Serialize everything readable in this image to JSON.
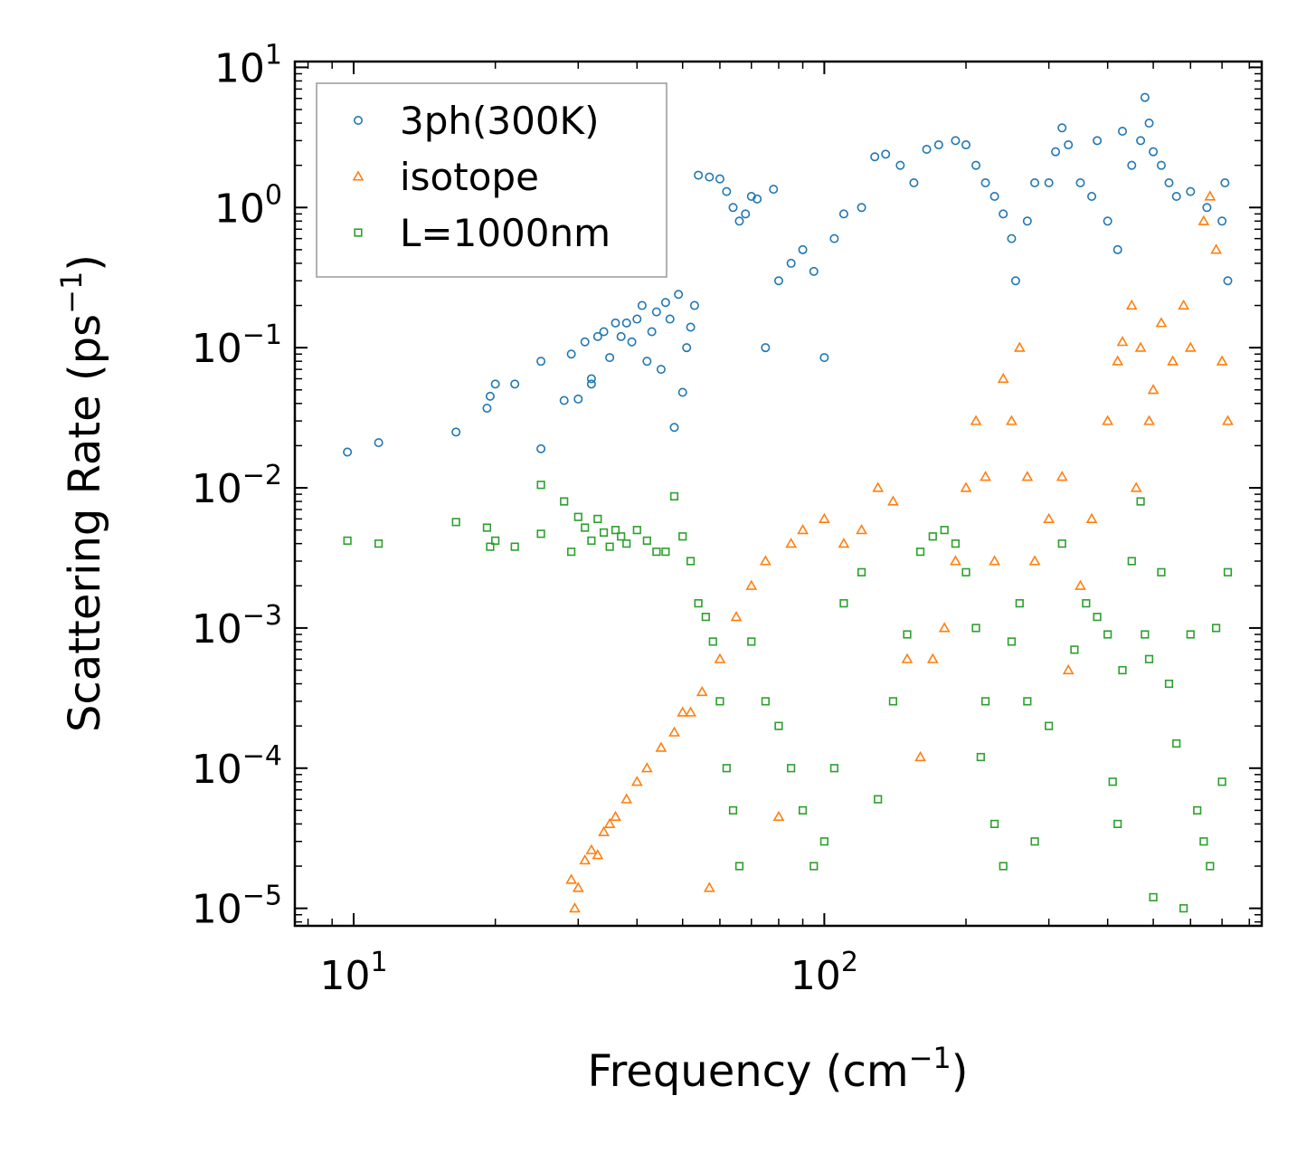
{
  "chart_data": {
    "type": "scatter",
    "title": "",
    "xlabel": "Frequency (cm",
    "xlabel_sup": "−1",
    "xlabel_close": ")",
    "ylabel": "Scattering Rate (ps",
    "ylabel_sup": "−1",
    "ylabel_close": ")",
    "xscale": "log",
    "yscale": "log",
    "xlim": [
      7.5,
      850
    ],
    "ylim": [
      7.5e-06,
      11
    ],
    "x_ticks": [
      {
        "value": 10,
        "base": "10",
        "exp": "1"
      },
      {
        "value": 100,
        "base": "10",
        "exp": "2"
      }
    ],
    "y_ticks": [
      {
        "value": 10,
        "base": "10",
        "exp": "1"
      },
      {
        "value": 1,
        "base": "10",
        "exp": "0"
      },
      {
        "value": 0.1,
        "base": "10",
        "exp": "−1"
      },
      {
        "value": 0.01,
        "base": "10",
        "exp": "−2"
      },
      {
        "value": 0.001,
        "base": "10",
        "exp": "−3"
      },
      {
        "value": 0.0001,
        "base": "10",
        "exp": "−4"
      },
      {
        "value": 1e-05,
        "base": "10",
        "exp": "−5"
      }
    ],
    "legend_position": "top-left",
    "series": [
      {
        "name": "3ph(300K)",
        "color": "#1f77b4",
        "marker": "circle",
        "points": [
          [
            9.7,
            0.018
          ],
          [
            11.3,
            0.021
          ],
          [
            16.5,
            0.025
          ],
          [
            19.2,
            0.037
          ],
          [
            19.5,
            0.045
          ],
          [
            20,
            0.055
          ],
          [
            22,
            0.055
          ],
          [
            25,
            0.08
          ],
          [
            25,
            0.019
          ],
          [
            28,
            0.042
          ],
          [
            29,
            0.09
          ],
          [
            30,
            0.043
          ],
          [
            31,
            0.11
          ],
          [
            32,
            0.06
          ],
          [
            32,
            0.055
          ],
          [
            33,
            0.12
          ],
          [
            34,
            0.13
          ],
          [
            35,
            0.085
          ],
          [
            36,
            0.15
          ],
          [
            37,
            0.12
          ],
          [
            38,
            0.15
          ],
          [
            39,
            0.11
          ],
          [
            40,
            0.16
          ],
          [
            41,
            0.2
          ],
          [
            42,
            0.08
          ],
          [
            43,
            0.13
          ],
          [
            44,
            0.18
          ],
          [
            45,
            0.07
          ],
          [
            46,
            0.21
          ],
          [
            47,
            0.16
          ],
          [
            48,
            0.027
          ],
          [
            49,
            0.24
          ],
          [
            50,
            0.048
          ],
          [
            51,
            0.1
          ],
          [
            52,
            0.14
          ],
          [
            53,
            0.2
          ],
          [
            54,
            1.7
          ],
          [
            57,
            1.65
          ],
          [
            60,
            1.6
          ],
          [
            62,
            1.3
          ],
          [
            64,
            1.0
          ],
          [
            66,
            0.8
          ],
          [
            68,
            0.9
          ],
          [
            70,
            1.2
          ],
          [
            72,
            1.15
          ],
          [
            75,
            0.1
          ],
          [
            78,
            1.35
          ],
          [
            80,
            0.3
          ],
          [
            85,
            0.4
          ],
          [
            90,
            0.5
          ],
          [
            95,
            0.35
          ],
          [
            100,
            0.085
          ],
          [
            105,
            0.6
          ],
          [
            110,
            0.9
          ],
          [
            120,
            1.0
          ],
          [
            128,
            2.3
          ],
          [
            135,
            2.4
          ],
          [
            145,
            2.0
          ],
          [
            155,
            1.5
          ],
          [
            165,
            2.6
          ],
          [
            175,
            2.8
          ],
          [
            190,
            3.0
          ],
          [
            200,
            2.8
          ],
          [
            210,
            2.0
          ],
          [
            220,
            1.5
          ],
          [
            230,
            1.2
          ],
          [
            240,
            0.9
          ],
          [
            250,
            0.6
          ],
          [
            255,
            0.3
          ],
          [
            270,
            0.8
          ],
          [
            280,
            1.5
          ],
          [
            300,
            1.5
          ],
          [
            310,
            2.5
          ],
          [
            320,
            3.7
          ],
          [
            330,
            2.8
          ],
          [
            350,
            1.5
          ],
          [
            370,
            1.2
          ],
          [
            380,
            3.0
          ],
          [
            400,
            0.8
          ],
          [
            420,
            0.5
          ],
          [
            430,
            3.5
          ],
          [
            450,
            2.0
          ],
          [
            470,
            3.0
          ],
          [
            480,
            6.1
          ],
          [
            490,
            4.0
          ],
          [
            500,
            2.5
          ],
          [
            520,
            2.0
          ],
          [
            540,
            1.5
          ],
          [
            560,
            1.2
          ],
          [
            600,
            1.3
          ],
          [
            650,
            1.0
          ],
          [
            700,
            0.8
          ],
          [
            710,
            1.5
          ],
          [
            720,
            0.3
          ]
        ]
      },
      {
        "name": "isotope",
        "color": "#ff7f0e",
        "marker": "triangle",
        "points": [
          [
            29,
            1.6e-05
          ],
          [
            29.5,
            1e-05
          ],
          [
            30,
            1.4e-05
          ],
          [
            31,
            2.2e-05
          ],
          [
            32,
            2.6e-05
          ],
          [
            33,
            2.4e-05
          ],
          [
            34,
            3.5e-05
          ],
          [
            35,
            4e-05
          ],
          [
            36,
            4.5e-05
          ],
          [
            38,
            6e-05
          ],
          [
            40,
            8e-05
          ],
          [
            42,
            0.0001
          ],
          [
            45,
            0.00014
          ],
          [
            48,
            0.00018
          ],
          [
            50,
            0.00025
          ],
          [
            52,
            0.00025
          ],
          [
            55,
            0.00035
          ],
          [
            57,
            1.4e-05
          ],
          [
            60,
            0.0006
          ],
          [
            65,
            0.0012
          ],
          [
            70,
            0.002
          ],
          [
            75,
            0.003
          ],
          [
            80,
            4.5e-05
          ],
          [
            85,
            0.004
          ],
          [
            90,
            0.005
          ],
          [
            100,
            0.006
          ],
          [
            110,
            0.004
          ],
          [
            120,
            0.005
          ],
          [
            130,
            0.01
          ],
          [
            140,
            0.008
          ],
          [
            150,
            0.0006
          ],
          [
            160,
            0.00012
          ],
          [
            170,
            0.0006
          ],
          [
            180,
            0.001
          ],
          [
            190,
            0.003
          ],
          [
            200,
            0.01
          ],
          [
            210,
            0.03
          ],
          [
            220,
            0.012
          ],
          [
            230,
            0.003
          ],
          [
            240,
            0.06
          ],
          [
            250,
            0.03
          ],
          [
            260,
            0.1
          ],
          [
            270,
            0.012
          ],
          [
            280,
            0.003
          ],
          [
            300,
            0.006
          ],
          [
            320,
            0.012
          ],
          [
            330,
            0.0005
          ],
          [
            350,
            0.002
          ],
          [
            370,
            0.006
          ],
          [
            400,
            0.03
          ],
          [
            420,
            0.08
          ],
          [
            430,
            0.11
          ],
          [
            450,
            0.2
          ],
          [
            460,
            0.01
          ],
          [
            470,
            0.1
          ],
          [
            490,
            0.03
          ],
          [
            500,
            0.05
          ],
          [
            520,
            0.15
          ],
          [
            550,
            0.08
          ],
          [
            580,
            0.2
          ],
          [
            600,
            0.1
          ],
          [
            640,
            0.8
          ],
          [
            660,
            1.2
          ],
          [
            680,
            0.5
          ],
          [
            700,
            0.08
          ],
          [
            720,
            0.03
          ]
        ]
      },
      {
        "name": "L=1000nm",
        "color": "#2ca02c",
        "marker": "square",
        "points": [
          [
            9.7,
            0.0042
          ],
          [
            11.3,
            0.004
          ],
          [
            16.5,
            0.0057
          ],
          [
            19.2,
            0.0052
          ],
          [
            19.5,
            0.0038
          ],
          [
            20,
            0.0042
          ],
          [
            22,
            0.0038
          ],
          [
            25,
            0.0047
          ],
          [
            25,
            0.0105
          ],
          [
            28,
            0.008
          ],
          [
            29,
            0.0035
          ],
          [
            30,
            0.0062
          ],
          [
            31,
            0.0052
          ],
          [
            32,
            0.0042
          ],
          [
            33,
            0.006
          ],
          [
            34,
            0.0048
          ],
          [
            35,
            0.0038
          ],
          [
            36,
            0.005
          ],
          [
            37,
            0.0045
          ],
          [
            38,
            0.004
          ],
          [
            40,
            0.005
          ],
          [
            42,
            0.0042
          ],
          [
            44,
            0.0035
          ],
          [
            46,
            0.0035
          ],
          [
            48,
            0.0087
          ],
          [
            50,
            0.0045
          ],
          [
            52,
            0.003
          ],
          [
            54,
            0.0015
          ],
          [
            56,
            0.0012
          ],
          [
            58,
            0.0008
          ],
          [
            60,
            0.0003
          ],
          [
            62,
            0.0001
          ],
          [
            64,
            5e-05
          ],
          [
            66,
            2e-05
          ],
          [
            70,
            0.0008
          ],
          [
            75,
            0.0003
          ],
          [
            80,
            0.0002
          ],
          [
            85,
            0.0001
          ],
          [
            90,
            5e-05
          ],
          [
            95,
            2e-05
          ],
          [
            100,
            3e-05
          ],
          [
            105,
            0.0001
          ],
          [
            110,
            0.0015
          ],
          [
            120,
            0.0025
          ],
          [
            130,
            6e-05
          ],
          [
            140,
            0.0003
          ],
          [
            150,
            0.0009
          ],
          [
            160,
            0.0035
          ],
          [
            170,
            0.0045
          ],
          [
            180,
            0.005
          ],
          [
            190,
            0.004
          ],
          [
            200,
            0.0025
          ],
          [
            210,
            0.001
          ],
          [
            215,
            0.00012
          ],
          [
            220,
            0.0003
          ],
          [
            230,
            4e-05
          ],
          [
            240,
            2e-05
          ],
          [
            250,
            0.0008
          ],
          [
            260,
            0.0015
          ],
          [
            270,
            0.0003
          ],
          [
            280,
            3e-05
          ],
          [
            300,
            0.0002
          ],
          [
            320,
            0.004
          ],
          [
            340,
            0.0007
          ],
          [
            360,
            0.0015
          ],
          [
            380,
            0.0012
          ],
          [
            400,
            0.0009
          ],
          [
            410,
            8e-05
          ],
          [
            420,
            4e-05
          ],
          [
            430,
            0.0005
          ],
          [
            450,
            0.003
          ],
          [
            470,
            0.008
          ],
          [
            480,
            0.0009
          ],
          [
            490,
            0.0006
          ],
          [
            500,
            1.2e-05
          ],
          [
            520,
            0.0025
          ],
          [
            540,
            0.0004
          ],
          [
            560,
            0.00015
          ],
          [
            580,
            1e-05
          ],
          [
            600,
            0.0009
          ],
          [
            620,
            5e-05
          ],
          [
            640,
            3e-05
          ],
          [
            660,
            2e-05
          ],
          [
            680,
            0.001
          ],
          [
            700,
            8e-05
          ],
          [
            720,
            0.0025
          ]
        ]
      }
    ]
  }
}
